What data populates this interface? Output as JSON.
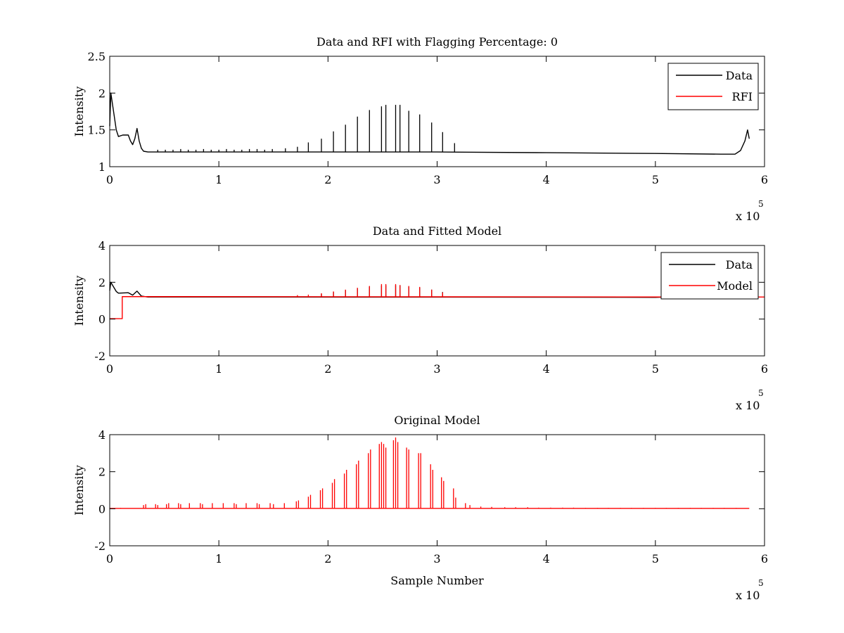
{
  "chart_data": [
    {
      "type": "line",
      "title": "Data and RFI with Flagging Percentage: 0",
      "xlabel": "",
      "ylabel": "Intensity",
      "xlim": [
        0,
        600000
      ],
      "ylim": [
        1,
        2.5
      ],
      "xticks": [
        0,
        1,
        2,
        3,
        4,
        5,
        6
      ],
      "yticks": [
        1,
        1.5,
        2,
        2.5
      ],
      "x_multiplier": "x 10",
      "x_multiplier_exponent": "5",
      "grid": false,
      "legend_position": "top-right",
      "legend": [
        {
          "label": "Data",
          "color": "#000000"
        },
        {
          "label": "RFI",
          "color": "#ff0000"
        }
      ],
      "series": [
        {
          "name": "Data",
          "color": "#000000",
          "baseline": [
            [
              0,
              1.55
            ],
            [
              1000,
              2.0
            ],
            [
              3000,
              1.8
            ],
            [
              6000,
              1.5
            ],
            [
              8000,
              1.41
            ],
            [
              12000,
              1.43
            ],
            [
              17000,
              1.43
            ],
            [
              19000,
              1.35
            ],
            [
              21000,
              1.3
            ],
            [
              23000,
              1.38
            ],
            [
              25000,
              1.52
            ],
            [
              27000,
              1.35
            ],
            [
              29000,
              1.25
            ],
            [
              31000,
              1.21
            ],
            [
              35000,
              1.2
            ],
            [
              100000,
              1.2
            ],
            [
              200000,
              1.2
            ],
            [
              300000,
              1.2
            ],
            [
              400000,
              1.19
            ],
            [
              500000,
              1.18
            ],
            [
              560000,
              1.17
            ],
            [
              573000,
              1.17
            ],
            [
              578000,
              1.22
            ],
            [
              582000,
              1.35
            ],
            [
              584500,
              1.5
            ],
            [
              586000,
              1.38
            ]
          ],
          "spikes": [
            [
              44000,
              1.23
            ],
            [
              51000,
              1.23
            ],
            [
              58000,
              1.23
            ],
            [
              65000,
              1.24
            ],
            [
              72000,
              1.23
            ],
            [
              79000,
              1.23
            ],
            [
              86000,
              1.24
            ],
            [
              93000,
              1.23
            ],
            [
              100000,
              1.23
            ],
            [
              107000,
              1.24
            ],
            [
              114000,
              1.23
            ],
            [
              121000,
              1.23
            ],
            [
              128000,
              1.24
            ],
            [
              135000,
              1.24
            ],
            [
              142000,
              1.23
            ],
            [
              149000,
              1.24
            ],
            [
              161000,
              1.25
            ],
            [
              172000,
              1.27
            ],
            [
              182000,
              1.33
            ],
            [
              194000,
              1.38
            ],
            [
              205000,
              1.48
            ],
            [
              216000,
              1.57
            ],
            [
              227000,
              1.68
            ],
            [
              238000,
              1.77
            ],
            [
              249000,
              1.82
            ],
            [
              253000,
              1.84
            ],
            [
              262000,
              1.84
            ],
            [
              266000,
              1.84
            ],
            [
              274000,
              1.76
            ],
            [
              284000,
              1.71
            ],
            [
              295000,
              1.6
            ],
            [
              305000,
              1.47
            ],
            [
              316000,
              1.32
            ]
          ]
        },
        {
          "name": "RFI",
          "color": "#ff0000",
          "baseline": [],
          "spikes": []
        }
      ]
    },
    {
      "type": "line",
      "title": "Data and Fitted Model",
      "xlabel": "",
      "ylabel": "Intensity",
      "xlim": [
        0,
        600000
      ],
      "ylim": [
        -2,
        4
      ],
      "xticks": [
        0,
        1,
        2,
        3,
        4,
        5,
        6
      ],
      "yticks": [
        -2,
        0,
        2,
        4
      ],
      "x_multiplier": "x 10",
      "x_multiplier_exponent": "5",
      "grid": false,
      "legend_position": "top-right",
      "legend": [
        {
          "label": "Data",
          "color": "#000000"
        },
        {
          "label": "Model",
          "color": "#ff0000"
        }
      ],
      "series": [
        {
          "name": "Data",
          "color": "#000000",
          "baseline": [
            [
              0,
              1.55
            ],
            [
              1000,
              2.0
            ],
            [
              3000,
              1.8
            ],
            [
              6000,
              1.5
            ],
            [
              8000,
              1.41
            ],
            [
              17000,
              1.43
            ],
            [
              21000,
              1.3
            ],
            [
              25000,
              1.52
            ],
            [
              29000,
              1.25
            ],
            [
              35000,
              1.2
            ],
            [
              400000,
              1.19
            ],
            [
              500000,
              1.18
            ],
            [
              510000,
              1.2
            ]
          ],
          "spikes": [
            [
              194000,
              1.38
            ],
            [
              205000,
              1.48
            ],
            [
              216000,
              1.57
            ],
            [
              227000,
              1.68
            ],
            [
              238000,
              1.77
            ],
            [
              249000,
              1.82
            ],
            [
              253000,
              1.84
            ],
            [
              262000,
              1.84
            ],
            [
              266000,
              1.84
            ],
            [
              274000,
              1.76
            ],
            [
              284000,
              1.71
            ],
            [
              295000,
              1.6
            ],
            [
              305000,
              1.47
            ]
          ]
        },
        {
          "name": "Model",
          "color": "#ff0000",
          "baseline": [
            [
              0,
              0.02
            ],
            [
              11500,
              0.02
            ],
            [
              11500,
              1.22
            ],
            [
              600000,
              1.2
            ]
          ],
          "spikes": [
            [
              172000,
              1.3
            ],
            [
              182000,
              1.33
            ],
            [
              194000,
              1.4
            ],
            [
              205000,
              1.5
            ],
            [
              216000,
              1.6
            ],
            [
              227000,
              1.7
            ],
            [
              238000,
              1.8
            ],
            [
              249000,
              1.9
            ],
            [
              253000,
              1.9
            ],
            [
              262000,
              1.9
            ],
            [
              266000,
              1.85
            ],
            [
              274000,
              1.8
            ],
            [
              284000,
              1.75
            ],
            [
              295000,
              1.6
            ],
            [
              305000,
              1.45
            ]
          ]
        }
      ]
    },
    {
      "type": "line",
      "title": "Original Model",
      "xlabel": "Sample Number",
      "ylabel": "Intensity",
      "xlim": [
        0,
        600000
      ],
      "ylim": [
        -2,
        4
      ],
      "xticks": [
        0,
        1,
        2,
        3,
        4,
        5,
        6
      ],
      "yticks": [
        -2,
        0,
        2,
        4
      ],
      "x_multiplier": "x 10",
      "x_multiplier_exponent": "5",
      "grid": false,
      "legend_position": "none",
      "legend": [],
      "series": [
        {
          "name": "",
          "color": "#ff0000",
          "baseline": [
            [
              0,
              0.02
            ],
            [
              586000,
              0.02
            ]
          ],
          "spikes": [
            [
              10000,
              0.05
            ],
            [
              31000,
              0.2
            ],
            [
              33000,
              0.25
            ],
            [
              42000,
              0.25
            ],
            [
              44000,
              0.2
            ],
            [
              52000,
              0.25
            ],
            [
              54000,
              0.3
            ],
            [
              63000,
              0.3
            ],
            [
              65000,
              0.25
            ],
            [
              73000,
              0.3
            ],
            [
              83000,
              0.3
            ],
            [
              85000,
              0.25
            ],
            [
              94000,
              0.3
            ],
            [
              104000,
              0.3
            ],
            [
              114000,
              0.3
            ],
            [
              116000,
              0.25
            ],
            [
              125000,
              0.3
            ],
            [
              135000,
              0.3
            ],
            [
              137000,
              0.25
            ],
            [
              147000,
              0.3
            ],
            [
              150000,
              0.25
            ],
            [
              160000,
              0.3
            ],
            [
              171000,
              0.4
            ],
            [
              173000,
              0.45
            ],
            [
              182000,
              0.65
            ],
            [
              184000,
              0.75
            ],
            [
              193000,
              1.0
            ],
            [
              195000,
              1.1
            ],
            [
              204000,
              1.4
            ],
            [
              206000,
              1.6
            ],
            [
              215000,
              1.9
            ],
            [
              217000,
              2.1
            ],
            [
              226000,
              2.4
            ],
            [
              228000,
              2.6
            ],
            [
              237000,
              3.0
            ],
            [
              239000,
              3.2
            ],
            [
              247000,
              3.5
            ],
            [
              249000,
              3.6
            ],
            [
              251000,
              3.5
            ],
            [
              253000,
              3.3
            ],
            [
              260000,
              3.7
            ],
            [
              262000,
              3.85
            ],
            [
              264000,
              3.6
            ],
            [
              272000,
              3.3
            ],
            [
              274000,
              3.2
            ],
            [
              283000,
              3.0
            ],
            [
              285000,
              3.0
            ],
            [
              294000,
              2.4
            ],
            [
              296000,
              2.1
            ],
            [
              304000,
              1.7
            ],
            [
              306000,
              1.5
            ],
            [
              315000,
              1.1
            ],
            [
              317000,
              0.6
            ],
            [
              326000,
              0.3
            ],
            [
              330000,
              0.2
            ],
            [
              340000,
              0.12
            ],
            [
              350000,
              0.1
            ],
            [
              362000,
              0.08
            ],
            [
              372000,
              0.08
            ],
            [
              383000,
              0.08
            ],
            [
              393000,
              0.06
            ],
            [
              404000,
              0.06
            ],
            [
              415000,
              0.06
            ],
            [
              425000,
              0.06
            ],
            [
              436000,
              0.05
            ],
            [
              447000,
              0.05
            ],
            [
              457000,
              0.05
            ],
            [
              468000,
              0.05
            ],
            [
              478000,
              0.05
            ],
            [
              489000,
              0.05
            ],
            [
              500000,
              0.05
            ],
            [
              510000,
              0.05
            ],
            [
              521000,
              0.05
            ],
            [
              532000,
              0.05
            ],
            [
              542000,
              0.05
            ],
            [
              553000,
              0.05
            ],
            [
              563000,
              0.05
            ],
            [
              574000,
              0.05
            ]
          ]
        }
      ]
    }
  ]
}
